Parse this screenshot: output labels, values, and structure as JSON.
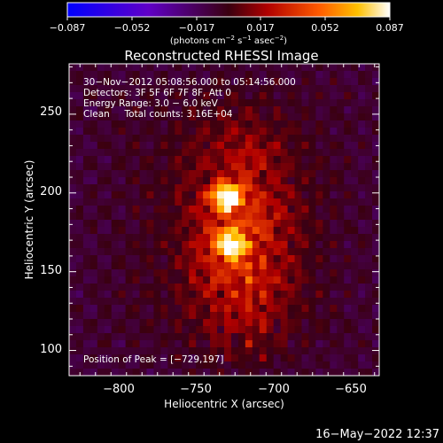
{
  "colorbar": {
    "ticks": [
      "−0.087",
      "−0.052",
      "−0.017",
      "0.017",
      "0.052",
      "0.087"
    ],
    "units_main": "(photons cm",
    "units_sup1": "−2",
    "units_mid": " s",
    "units_sup2": "−1",
    "units_tail": " asec",
    "units_sup3": "−2",
    "units_close": ")"
  },
  "timestamp": "16−May−2022 12:37",
  "chart_data": {
    "type": "heatmap",
    "title": "Reconstructed RHESSI Image",
    "xlabel": "Heliocentric X (arcsec)",
    "ylabel": "Heliocentric Y (arcsec)",
    "xlim": [
      -832,
      -632
    ],
    "ylim": [
      84,
      282
    ],
    "xticks": [
      -800,
      -750,
      -700,
      -650
    ],
    "xtick_labels": [
      "−800",
      "−750",
      "−700",
      "−650"
    ],
    "yticks": [
      100,
      150,
      200,
      250
    ],
    "ytick_labels": [
      "100",
      "150",
      "200",
      "250"
    ],
    "colorscale": {
      "min": -0.087,
      "max": 0.087,
      "name": "RHESSI red-temperature"
    },
    "annotations": [
      "30−Nov−2012 05:08:56.000 to 05:14:56.000",
      "Detectors: 3F 5F 6F 7F 8F, Att 0",
      "Energy Range: 3.0 − 6.0 keV",
      "Clean     Total counts: 3.16E+04"
    ],
    "peak_label": "Position of Peak = [−729,197]",
    "sources": [
      {
        "x": -730,
        "y": 197,
        "amplitude": 0.087
      },
      {
        "x": -728,
        "y": 168,
        "amplitude": 0.075
      }
    ]
  }
}
